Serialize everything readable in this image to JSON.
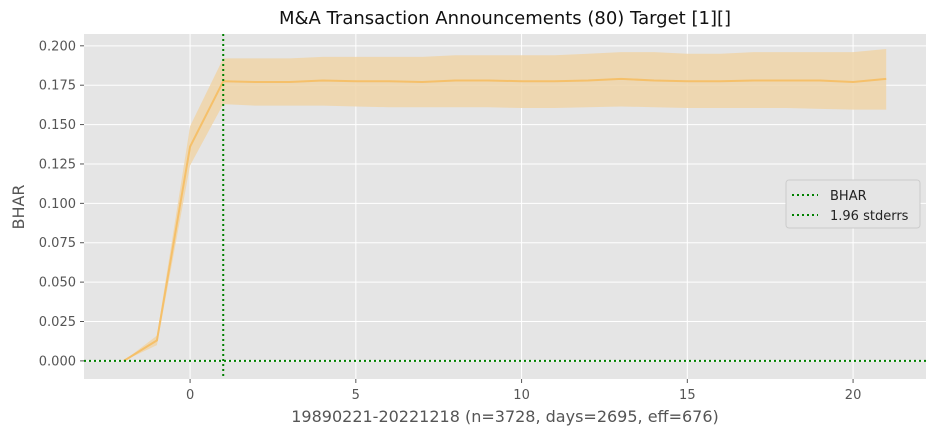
{
  "chart_data": {
    "type": "line",
    "title": "M&A Transaction Announcements (80) Target [1][]",
    "xlabel": "19890221-20221218 (n=3728, days=2695, eff=676)",
    "ylabel": "BHAR",
    "xlim": [
      -3.2,
      22.2
    ],
    "ylim": [
      -0.0115,
      0.2075
    ],
    "xticks": [
      0,
      5,
      10,
      15,
      20
    ],
    "xtick_labels": [
      "0",
      "5",
      "10",
      "15",
      "20"
    ],
    "yticks": [
      0.0,
      0.025,
      0.05,
      0.075,
      0.1,
      0.125,
      0.15,
      0.175,
      0.2
    ],
    "ytick_labels": [
      "0.000",
      "0.025",
      "0.050",
      "0.075",
      "0.100",
      "0.125",
      "0.150",
      "0.175",
      "0.200"
    ],
    "grid": true,
    "background": "#e5e5e5",
    "legend": {
      "position": "right",
      "entries": [
        "BHAR",
        "1.96 stderrs"
      ]
    },
    "colors": {
      "line": "#f5c06a",
      "band": "#f0d5a8",
      "reference": "#008000"
    },
    "reference_lines": {
      "horizontal_y": 0.0,
      "vertical_x": 1
    },
    "series": [
      {
        "x": [
          -2,
          -1,
          0,
          1,
          2,
          3,
          4,
          5,
          6,
          7,
          8,
          9,
          10,
          11,
          12,
          13,
          14,
          15,
          16,
          17,
          18,
          19,
          20,
          21
        ],
        "values": [
          0.0,
          0.013,
          0.136,
          0.1775,
          0.177,
          0.177,
          0.178,
          0.1775,
          0.1775,
          0.177,
          0.178,
          0.178,
          0.1775,
          0.1775,
          0.178,
          0.179,
          0.178,
          0.1775,
          0.1775,
          0.178,
          0.178,
          0.178,
          0.177,
          0.179
        ],
        "lower": [
          0.0,
          0.01,
          0.124,
          0.163,
          0.162,
          0.162,
          0.162,
          0.1615,
          0.161,
          0.161,
          0.161,
          0.161,
          0.1605,
          0.1605,
          0.161,
          0.1615,
          0.161,
          0.1605,
          0.1605,
          0.1605,
          0.1605,
          0.16,
          0.1595,
          0.1595
        ],
        "upper": [
          0.0,
          0.016,
          0.149,
          0.192,
          0.192,
          0.192,
          0.193,
          0.193,
          0.193,
          0.193,
          0.194,
          0.194,
          0.194,
          0.194,
          0.195,
          0.196,
          0.196,
          0.195,
          0.195,
          0.196,
          0.196,
          0.196,
          0.196,
          0.198
        ]
      }
    ]
  }
}
